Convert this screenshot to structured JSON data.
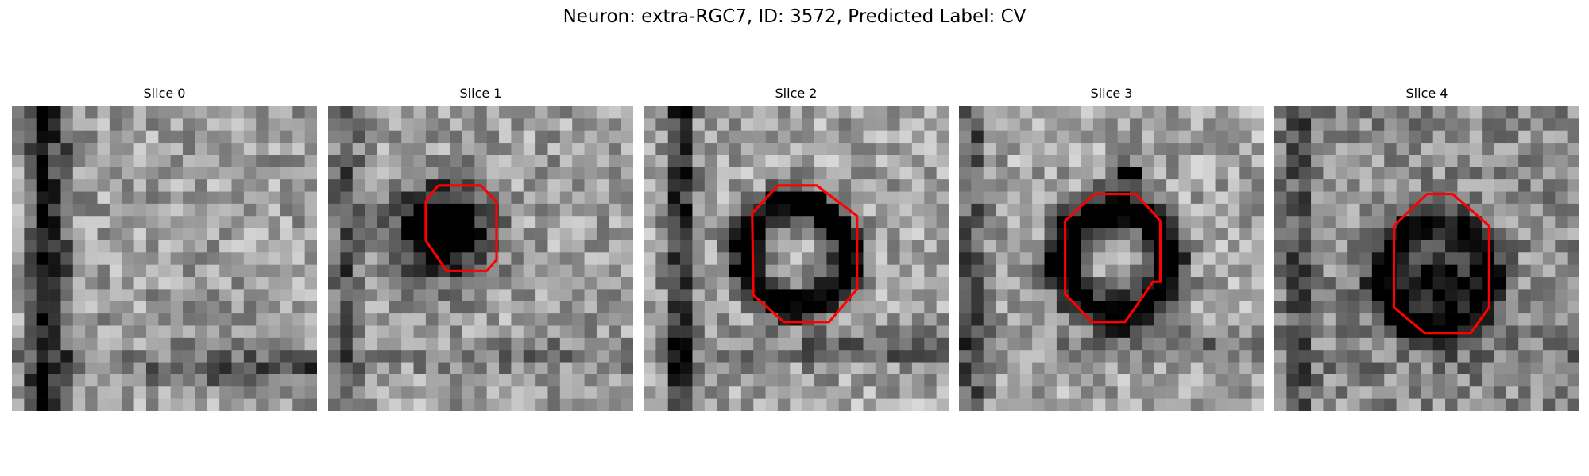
{
  "figure": {
    "title": "Neuron: extra-RGC7, ID: 3572, Predicted Label: CV"
  },
  "panels": [
    {
      "title": "Slice 0",
      "has_outline": false
    },
    {
      "title": "Slice 1",
      "has_outline": true
    },
    {
      "title": "Slice 2",
      "has_outline": true
    },
    {
      "title": "Slice 3",
      "has_outline": true
    },
    {
      "title": "Slice 4",
      "has_outline": true
    }
  ],
  "colors": {
    "outline": "#ff0000",
    "background": "#ffffff"
  }
}
